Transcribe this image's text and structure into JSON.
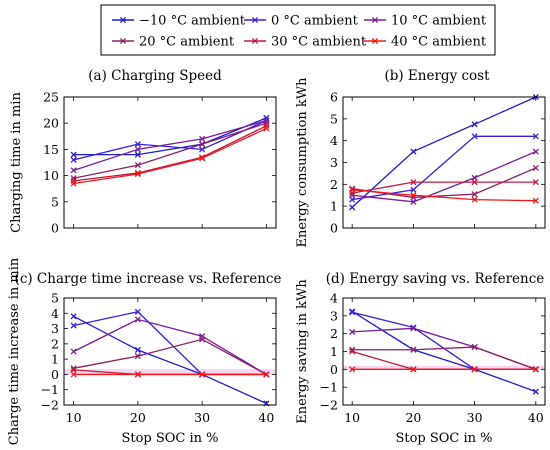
{
  "legend": {
    "items": [
      {
        "label": "−10 °C ambient",
        "color": "#1c1cc8"
      },
      {
        "label": "0 °C ambient",
        "color": "#3a1ee0"
      },
      {
        "label": "10 °C ambient",
        "color": "#7a1a9c"
      },
      {
        "label": "20 °C ambient",
        "color": "#8a1e6a"
      },
      {
        "label": "30 °C ambient",
        "color": "#c41a3a"
      },
      {
        "label": "40 °C ambient",
        "color": "#f01818"
      }
    ]
  },
  "chart_data": [
    {
      "type": "line",
      "title": "(a) Charging Speed",
      "xlabel": "",
      "ylabel": "Charging time in min",
      "x": [
        10,
        20,
        30,
        40
      ],
      "ylim": [
        0,
        25
      ],
      "yticks": [
        0,
        5,
        10,
        15,
        20,
        25
      ],
      "xticks": [
        10,
        20,
        30,
        40
      ],
      "show_xticklabels": false,
      "series": [
        {
          "name": "−10 °C ambient",
          "values": [
            14.0,
            14.0,
            16.0,
            21.0
          ]
        },
        {
          "name": "0 °C ambient",
          "values": [
            13.0,
            16.0,
            15.0,
            20.5
          ]
        },
        {
          "name": "10 °C ambient",
          "values": [
            11.0,
            15.0,
            17.0,
            20.5
          ]
        },
        {
          "name": "20 °C ambient",
          "values": [
            9.5,
            12.0,
            16.0,
            20.0
          ]
        },
        {
          "name": "30 °C ambient",
          "values": [
            9.0,
            10.5,
            13.5,
            19.5
          ]
        },
        {
          "name": "40 °C ambient",
          "values": [
            8.5,
            10.3,
            13.3,
            19.0
          ]
        }
      ]
    },
    {
      "type": "line",
      "title": "(b) Energy cost",
      "xlabel": "",
      "ylabel": "Energy consumption kWh",
      "x": [
        10,
        20,
        30,
        40
      ],
      "ylim": [
        0,
        6
      ],
      "yticks": [
        0,
        1,
        2,
        3,
        4,
        5,
        6
      ],
      "xticks": [
        10,
        20,
        30,
        40
      ],
      "show_xticklabels": false,
      "series": [
        {
          "name": "−10 °C ambient",
          "values": [
            0.95,
            3.5,
            4.75,
            6.0
          ]
        },
        {
          "name": "0 °C ambient",
          "values": [
            1.3,
            1.75,
            4.2,
            4.2
          ]
        },
        {
          "name": "10 °C ambient",
          "values": [
            1.5,
            1.2,
            2.3,
            3.5
          ]
        },
        {
          "name": "20 °C ambient",
          "values": [
            1.8,
            1.4,
            1.55,
            2.75
          ]
        },
        {
          "name": "30 °C ambient",
          "values": [
            1.6,
            2.1,
            2.1,
            2.1
          ]
        },
        {
          "name": "40 °C ambient",
          "values": [
            1.75,
            1.5,
            1.3,
            1.25
          ]
        }
      ]
    },
    {
      "type": "line",
      "title": "(c) Charge time increase vs. Reference",
      "xlabel": "Stop SOC in %",
      "ylabel": "Charge time increase in min",
      "x": [
        10,
        20,
        30,
        40
      ],
      "ylim": [
        -2,
        5
      ],
      "yticks": [
        -2,
        -1,
        0,
        1,
        2,
        3,
        4,
        5
      ],
      "xticks": [
        10,
        20,
        30,
        40
      ],
      "show_xticklabels": true,
      "reference_band": [
        -0.05,
        0.35
      ],
      "series": [
        {
          "name": "−10 °C ambient",
          "values": [
            3.8,
            1.6,
            0.0,
            -1.9
          ]
        },
        {
          "name": "0 °C ambient",
          "values": [
            3.2,
            4.1,
            0.0,
            0.0
          ]
        },
        {
          "name": "10 °C ambient",
          "values": [
            1.5,
            3.6,
            2.5,
            0.0
          ]
        },
        {
          "name": "20 °C ambient",
          "values": [
            0.4,
            1.2,
            2.3,
            0.0
          ]
        },
        {
          "name": "30 °C ambient",
          "values": [
            0.3,
            0.0,
            0.0,
            0.0
          ]
        },
        {
          "name": "40 °C ambient",
          "values": [
            0.0,
            0.0,
            0.0,
            0.0
          ]
        }
      ]
    },
    {
      "type": "line",
      "title": "(d) Energy saving vs. Reference",
      "xlabel": "Stop SOC in %",
      "ylabel": "Energy saving in kWh",
      "x": [
        10,
        20,
        30,
        40
      ],
      "ylim": [
        -2,
        4
      ],
      "yticks": [
        -2,
        -1,
        0,
        1,
        2,
        3,
        4
      ],
      "xticks": [
        10,
        20,
        30,
        40
      ],
      "show_xticklabels": true,
      "reference_band": [
        -0.05,
        0.2
      ],
      "series": [
        {
          "name": "−10 °C ambient",
          "values": [
            3.25,
            1.1,
            0.0,
            -1.25
          ]
        },
        {
          "name": "0 °C ambient",
          "values": [
            3.2,
            2.35,
            0.0,
            0.0
          ]
        },
        {
          "name": "10 °C ambient",
          "values": [
            2.1,
            2.3,
            1.25,
            0.0
          ]
        },
        {
          "name": "20 °C ambient",
          "values": [
            1.1,
            1.1,
            1.25,
            0.0
          ]
        },
        {
          "name": "30 °C ambient",
          "values": [
            1.0,
            0.0,
            0.0,
            0.0
          ]
        },
        {
          "name": "40 °C ambient",
          "values": [
            0.0,
            0.0,
            0.0,
            0.0
          ]
        }
      ]
    }
  ]
}
